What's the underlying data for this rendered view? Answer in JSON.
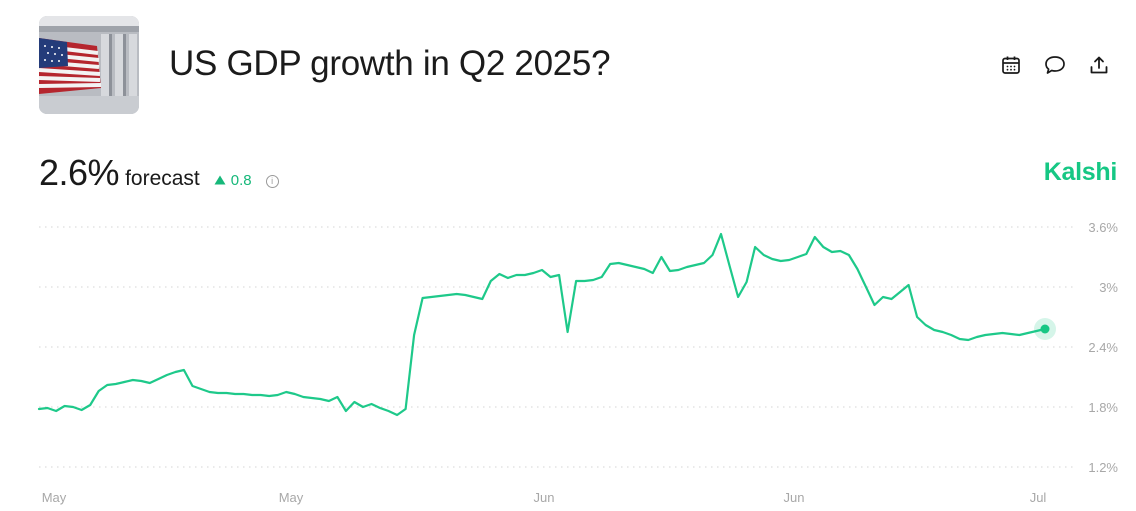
{
  "header": {
    "title": "US GDP growth in Q2 2025?",
    "thumbnail_icon": "us-flag-capitol-image",
    "actions": [
      {
        "name": "calendar-icon"
      },
      {
        "name": "comment-icon"
      },
      {
        "name": "share-icon"
      }
    ]
  },
  "summary": {
    "value": "2.6%",
    "label": "forecast",
    "delta": "0.8",
    "delta_direction": "up",
    "brand": "Kalshi"
  },
  "colors": {
    "accent": "#16c784",
    "line": "#1ec98a",
    "text": "#1a1a1a",
    "muted": "#a8a8a8"
  },
  "chart_data": {
    "type": "line",
    "title": "",
    "xlabel": "",
    "ylabel": "",
    "ylim": [
      1.2,
      3.6
    ],
    "yticks": [
      1.2,
      1.8,
      2.4,
      3.0,
      3.6
    ],
    "ytick_labels": [
      "1.2%",
      "1.8%",
      "2.4%",
      "3%",
      "3.6%"
    ],
    "xtick_labels": [
      "May",
      "May",
      "Jun",
      "Jun",
      "Jul"
    ],
    "grid": true,
    "series": [
      {
        "name": "forecast",
        "points": [
          [
            0,
            1.78
          ],
          [
            1,
            1.79
          ],
          [
            2,
            1.76
          ],
          [
            3,
            1.81
          ],
          [
            4,
            1.8
          ],
          [
            5,
            1.77
          ],
          [
            6,
            1.82
          ],
          [
            7,
            1.96
          ],
          [
            8,
            2.02
          ],
          [
            9,
            2.03
          ],
          [
            10,
            2.05
          ],
          [
            11,
            2.07
          ],
          [
            12,
            2.06
          ],
          [
            13,
            2.04
          ],
          [
            14,
            2.08
          ],
          [
            15,
            2.12
          ],
          [
            16,
            2.15
          ],
          [
            17,
            2.17
          ],
          [
            18,
            2.01
          ],
          [
            19,
            1.98
          ],
          [
            20,
            1.95
          ],
          [
            21,
            1.94
          ],
          [
            22,
            1.94
          ],
          [
            23,
            1.93
          ],
          [
            24,
            1.93
          ],
          [
            25,
            1.92
          ],
          [
            26,
            1.92
          ],
          [
            27,
            1.91
          ],
          [
            28,
            1.92
          ],
          [
            29,
            1.95
          ],
          [
            30,
            1.93
          ],
          [
            31,
            1.9
          ],
          [
            32,
            1.89
          ],
          [
            33,
            1.88
          ],
          [
            34,
            1.86
          ],
          [
            35,
            1.9
          ],
          [
            36,
            1.76
          ],
          [
            37,
            1.85
          ],
          [
            38,
            1.8
          ],
          [
            39,
            1.83
          ],
          [
            40,
            1.79
          ],
          [
            41,
            1.76
          ],
          [
            42,
            1.72
          ],
          [
            43,
            1.78
          ],
          [
            44,
            2.52
          ],
          [
            45,
            2.89
          ],
          [
            46,
            2.9
          ],
          [
            47,
            2.91
          ],
          [
            48,
            2.92
          ],
          [
            49,
            2.93
          ],
          [
            50,
            2.92
          ],
          [
            51,
            2.9
          ],
          [
            52,
            2.88
          ],
          [
            53,
            3.06
          ],
          [
            54,
            3.13
          ],
          [
            55,
            3.09
          ],
          [
            56,
            3.12
          ],
          [
            57,
            3.12
          ],
          [
            58,
            3.14
          ],
          [
            59,
            3.17
          ],
          [
            60,
            3.1
          ],
          [
            61,
            3.12
          ],
          [
            62,
            2.55
          ],
          [
            63,
            3.06
          ],
          [
            64,
            3.06
          ],
          [
            65,
            3.07
          ],
          [
            66,
            3.1
          ],
          [
            67,
            3.23
          ],
          [
            68,
            3.24
          ],
          [
            69,
            3.22
          ],
          [
            70,
            3.2
          ],
          [
            71,
            3.18
          ],
          [
            72,
            3.14
          ],
          [
            73,
            3.3
          ],
          [
            74,
            3.16
          ],
          [
            75,
            3.17
          ],
          [
            76,
            3.2
          ],
          [
            77,
            3.22
          ],
          [
            78,
            3.24
          ],
          [
            79,
            3.32
          ],
          [
            80,
            3.53
          ],
          [
            81,
            3.21
          ],
          [
            82,
            2.9
          ],
          [
            83,
            3.05
          ],
          [
            84,
            3.4
          ],
          [
            85,
            3.32
          ],
          [
            86,
            3.28
          ],
          [
            87,
            3.26
          ],
          [
            88,
            3.27
          ],
          [
            89,
            3.3
          ],
          [
            90,
            3.33
          ],
          [
            91,
            3.5
          ],
          [
            92,
            3.4
          ],
          [
            93,
            3.35
          ],
          [
            94,
            3.36
          ],
          [
            95,
            3.32
          ],
          [
            96,
            3.18
          ],
          [
            97,
            3.0
          ],
          [
            98,
            2.82
          ],
          [
            99,
            2.9
          ],
          [
            100,
            2.88
          ],
          [
            101,
            2.95
          ],
          [
            102,
            3.02
          ],
          [
            103,
            2.7
          ],
          [
            104,
            2.62
          ],
          [
            105,
            2.57
          ],
          [
            106,
            2.55
          ],
          [
            107,
            2.52
          ],
          [
            108,
            2.48
          ],
          [
            109,
            2.47
          ],
          [
            110,
            2.5
          ],
          [
            111,
            2.52
          ],
          [
            112,
            2.53
          ],
          [
            113,
            2.54
          ],
          [
            114,
            2.53
          ],
          [
            115,
            2.52
          ],
          [
            116,
            2.54
          ],
          [
            117,
            2.56
          ],
          [
            118,
            2.58
          ]
        ],
        "last_value": 2.6
      }
    ]
  }
}
